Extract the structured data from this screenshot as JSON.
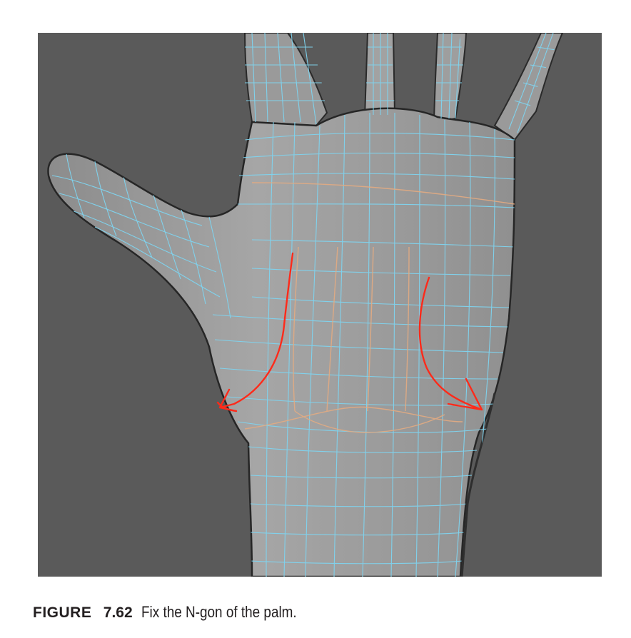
{
  "figure": {
    "background_color": "#5a5a5a",
    "mesh_color": "#9c9c9c",
    "wire_color": "#7fd4f0",
    "edge_loop_color": "#e3ab82",
    "annotation_color": "#ff2a1a",
    "annotation_arrows": 2
  },
  "caption": {
    "label": "FIGURE",
    "number": "7.62",
    "text": "Fix the N-gon of the palm."
  }
}
